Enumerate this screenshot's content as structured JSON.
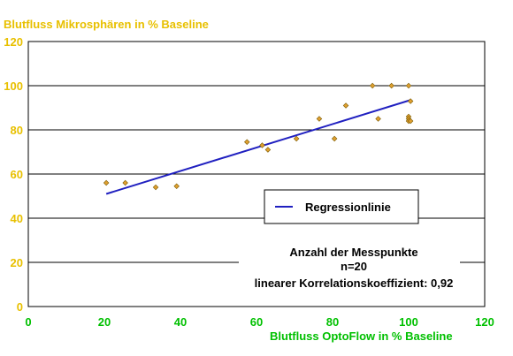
{
  "chart_data": {
    "type": "scatter",
    "ylabel": "Blutfluss Mikrosphären in % Baseline",
    "xlabel": "Blutfluss OptoFlow in % Baseline",
    "xlim": [
      0,
      120
    ],
    "ylim": [
      0,
      120
    ],
    "xticks": [
      0,
      20,
      40,
      60,
      80,
      100,
      120
    ],
    "yticks": [
      0,
      20,
      40,
      60,
      80,
      100,
      120
    ],
    "grid": "horizontal",
    "points": [
      {
        "x": 20.5,
        "y": 56
      },
      {
        "x": 25.5,
        "y": 56
      },
      {
        "x": 33.5,
        "y": 54
      },
      {
        "x": 39,
        "y": 54.5
      },
      {
        "x": 57.5,
        "y": 74.5
      },
      {
        "x": 61.5,
        "y": 73
      },
      {
        "x": 63,
        "y": 71
      },
      {
        "x": 70.5,
        "y": 76
      },
      {
        "x": 76.5,
        "y": 85
      },
      {
        "x": 80.5,
        "y": 76
      },
      {
        "x": 83.5,
        "y": 91
      },
      {
        "x": 90.5,
        "y": 100
      },
      {
        "x": 92,
        "y": 85
      },
      {
        "x": 95.5,
        "y": 100
      },
      {
        "x": 100,
        "y": 100
      },
      {
        "x": 100.5,
        "y": 93
      },
      {
        "x": 100,
        "y": 86
      },
      {
        "x": 100,
        "y": 85
      },
      {
        "x": 100,
        "y": 84
      },
      {
        "x": 100.5,
        "y": 84
      }
    ],
    "regression": {
      "name": "Regressionlinie",
      "x": [
        20.5,
        100.5
      ],
      "y": [
        51,
        93.5
      ]
    },
    "legend": "center-right",
    "annotations": [
      "Anzahl der Messpunkte",
      "n=20",
      "linearer Korrelationskoeffizient: 0,92"
    ],
    "colors": {
      "ylabel": "#e8c000",
      "xlabel": "#00c000",
      "yticks": "#e8c000",
      "xticks": "#00c000",
      "regression": "#2020c0",
      "marker_fill": "#e0a030",
      "marker_stroke": "#7a5a00",
      "grid": "#000000"
    }
  }
}
